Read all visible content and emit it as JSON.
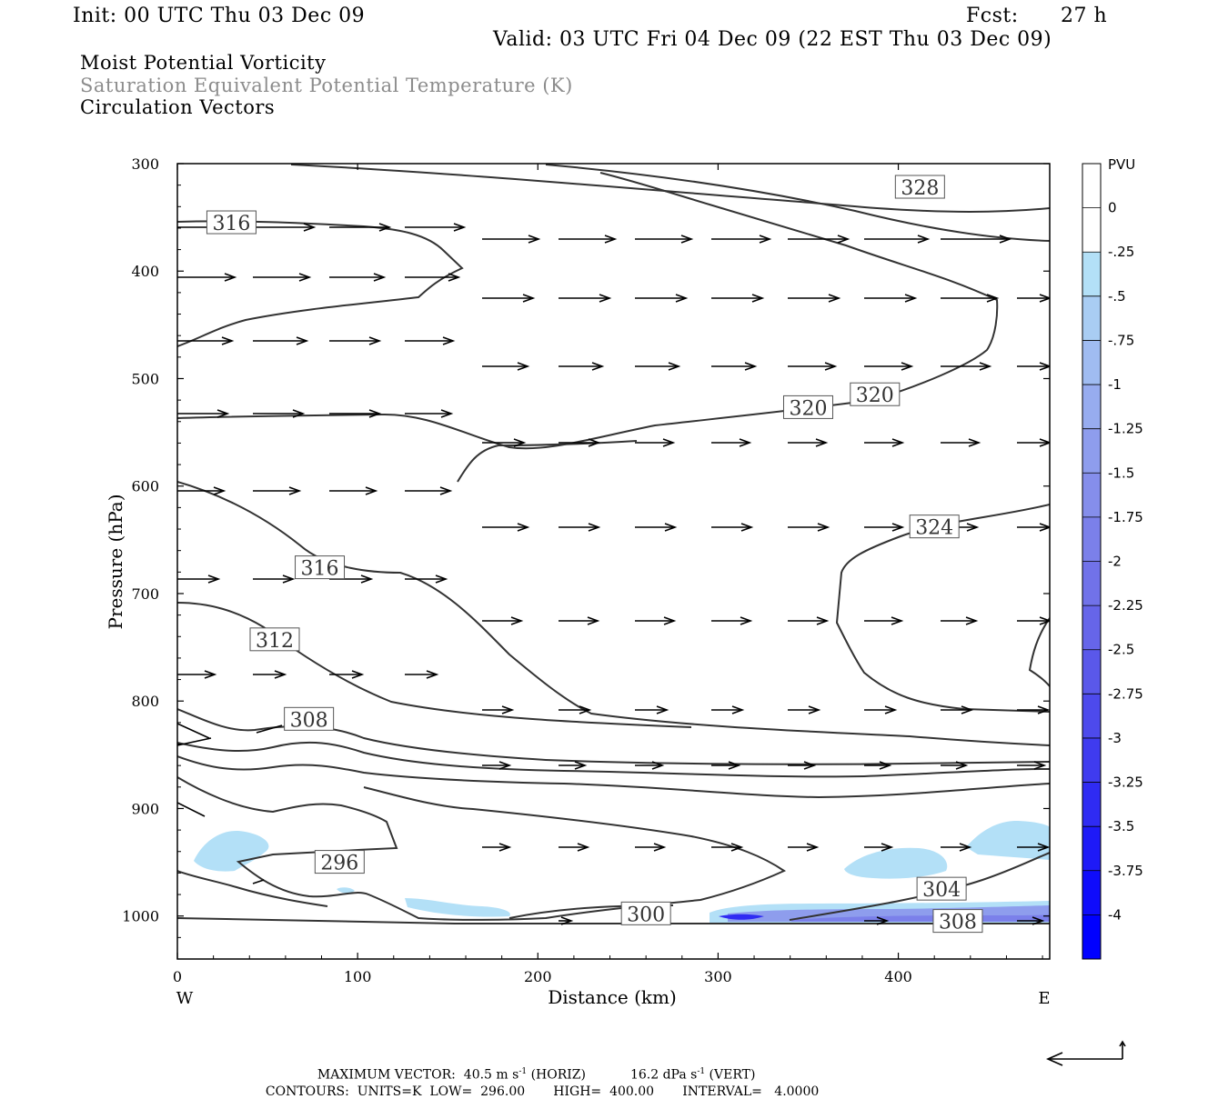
{
  "header": {
    "init": "Init: 00 UTC Thu 03 Dec 09",
    "fcst_label": "Fcst:",
    "fcst_value": "27 h",
    "valid": "Valid: 03 UTC Fri 04 Dec 09 (22 EST Thu 03 Dec 09)",
    "field1": "Moist Potential Vorticity",
    "field2": "Saturation Equivalent Potential Temperature (K)",
    "field3": "Circulation Vectors"
  },
  "colors": {
    "field2_text": "#8c8c8c",
    "contour": "#333333",
    "pv_light": "#b3e0f7",
    "pv_dark": "#0000ff"
  },
  "chart_data": {
    "type": "cross-section",
    "xlabel": "Distance (km)",
    "ylabel": "Pressure (hPa)",
    "x_ticks": [
      0,
      100,
      200,
      300,
      400
    ],
    "y_ticks": [
      300,
      400,
      500,
      600,
      700,
      800,
      900,
      1000
    ],
    "xlim": [
      0,
      484
    ],
    "ylim": [
      1040,
      300
    ],
    "west_label": "W",
    "east_label": "E",
    "colorbar": {
      "title": "PVU",
      "labels": [
        "0",
        "-.25",
        "-.5",
        "-.75",
        "-1",
        "-1.25",
        "-1.5",
        "-1.75",
        "-2",
        "-2.25",
        "-2.5",
        "-2.75",
        "-3",
        "-3.25",
        "-3.5",
        "-3.75",
        "-4"
      ],
      "colors": [
        "#ffffff",
        "#ffffff",
        "#b3e0f7",
        "#a9cdf3",
        "#a0bcf1",
        "#97acef",
        "#8e9ded",
        "#858eeb",
        "#7b80ea",
        "#7172e9",
        "#6665e9",
        "#5a58ea",
        "#4d4aec",
        "#3f3bef",
        "#2f2bf3",
        "#1e1af7",
        "#0f0cfb",
        "#0000ff"
      ]
    },
    "contour_labels": [
      {
        "text": "328",
        "x": 412,
        "y": 322
      },
      {
        "text": "316",
        "x": 30,
        "y": 355
      },
      {
        "text": "320",
        "x": 350,
        "y": 527
      },
      {
        "text": "320",
        "x": 387,
        "y": 515
      },
      {
        "text": "324",
        "x": 420,
        "y": 638
      },
      {
        "text": "316",
        "x": 79,
        "y": 676
      },
      {
        "text": "312",
        "x": 54,
        "y": 743
      },
      {
        "text": "308",
        "x": 73,
        "y": 817
      },
      {
        "text": "296",
        "x": 90,
        "y": 950
      },
      {
        "text": "304",
        "x": 424,
        "y": 975
      },
      {
        "text": "300",
        "x": 260,
        "y": 998
      },
      {
        "text": "308",
        "x": 433,
        "y": 1005
      }
    ],
    "footer_line1": {
      "label": "MAXIMUM VECTOR:",
      "horiz_value": "40.5",
      "horiz_unit": "m s",
      "horiz_exp": "-1",
      "horiz_tag": "(HORIZ)",
      "vert_value": "16.2",
      "vert_unit": "dPa s",
      "vert_exp": "-1",
      "vert_tag": "(VERT)"
    },
    "footer_line2": {
      "contours": "CONTOURS:",
      "units": "UNITS=K",
      "low_label": "LOW=",
      "low": "296.00",
      "high_label": "HIGH=",
      "high": "400.00",
      "interval_label": "INTERVAL=",
      "interval": "4.0000"
    }
  }
}
